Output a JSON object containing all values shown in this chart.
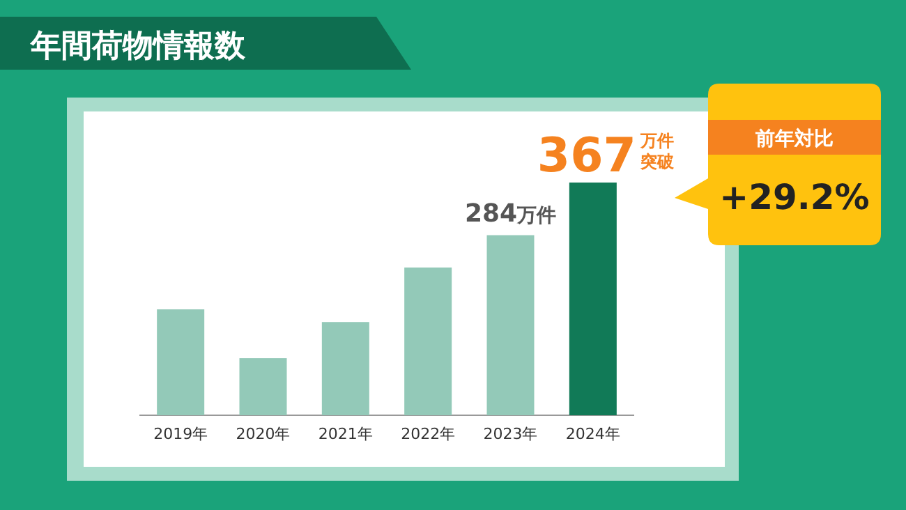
{
  "chart_data": {
    "type": "bar",
    "title": "年間荷物情報数",
    "categories": [
      "2019年",
      "2020年",
      "2021年",
      "2022年",
      "2023年",
      "2024年"
    ],
    "values": [
      167,
      90,
      147,
      233,
      284,
      367
    ],
    "colors": [
      "#93c9b8",
      "#93c9b8",
      "#93c9b8",
      "#93c9b8",
      "#93c9b8",
      "#117a57"
    ],
    "value_labels": [
      null,
      null,
      null,
      null,
      "284万件",
      "367万件突破"
    ],
    "annotations": [
      "前年対比",
      "+29.2%"
    ]
  }
}
